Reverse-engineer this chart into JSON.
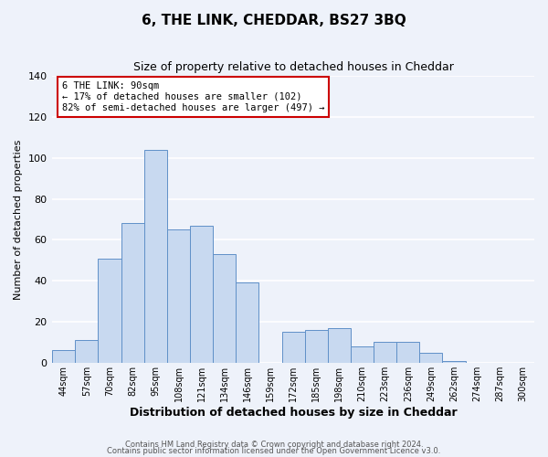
{
  "title": "6, THE LINK, CHEDDAR, BS27 3BQ",
  "subtitle": "Size of property relative to detached houses in Cheddar",
  "xlabel": "Distribution of detached houses by size in Cheddar",
  "ylabel": "Number of detached properties",
  "bar_labels": [
    "44sqm",
    "57sqm",
    "70sqm",
    "82sqm",
    "95sqm",
    "108sqm",
    "121sqm",
    "134sqm",
    "146sqm",
    "159sqm",
    "172sqm",
    "185sqm",
    "198sqm",
    "210sqm",
    "223sqm",
    "236sqm",
    "249sqm",
    "262sqm",
    "274sqm",
    "287sqm",
    "300sqm"
  ],
  "bar_values": [
    6,
    11,
    51,
    68,
    104,
    65,
    67,
    53,
    39,
    0,
    15,
    16,
    17,
    8,
    10,
    10,
    5,
    1,
    0,
    0,
    0
  ],
  "bar_color": "#c8d9f0",
  "bar_edge_color": "#6090c8",
  "background_color": "#eef2fa",
  "plot_bg_color": "#eef2fa",
  "ylim": [
    0,
    140
  ],
  "yticks": [
    0,
    20,
    40,
    60,
    80,
    100,
    120,
    140
  ],
  "annotation_title": "6 THE LINK: 90sqm",
  "annotation_line1": "← 17% of detached houses are smaller (102)",
  "annotation_line2": "82% of semi-detached houses are larger (497) →",
  "annotation_box_facecolor": "#ffffff",
  "annotation_box_edgecolor": "#cc0000",
  "footer1": "Contains HM Land Registry data © Crown copyright and database right 2024.",
  "footer2": "Contains public sector information licensed under the Open Government Licence v3.0.",
  "title_fontsize": 11,
  "subtitle_fontsize": 9,
  "ylabel_fontsize": 8,
  "xlabel_fontsize": 9
}
